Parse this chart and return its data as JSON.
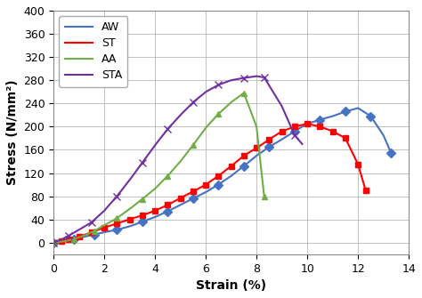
{
  "title": "",
  "xlabel": "Strain (%)",
  "ylabel": "Stress (N/mm²)",
  "xlim": [
    0,
    14
  ],
  "ylim": [
    -20,
    400
  ],
  "yticks": [
    0,
    40,
    80,
    120,
    160,
    200,
    240,
    280,
    320,
    360,
    400
  ],
  "xticks": [
    0,
    2,
    4,
    6,
    8,
    10,
    12,
    14
  ],
  "AW": {
    "color": "#4472C4",
    "marker": "D",
    "x": [
      0,
      0.4,
      0.8,
      1.2,
      1.6,
      2.0,
      2.5,
      3.0,
      3.5,
      4.0,
      4.5,
      5.0,
      5.5,
      6.0,
      6.5,
      7.0,
      7.5,
      8.0,
      8.5,
      9.0,
      9.5,
      10.0,
      10.5,
      11.0,
      11.5,
      12.0,
      12.5,
      13.0,
      13.3
    ],
    "y": [
      0,
      3,
      6,
      10,
      14,
      18,
      22,
      28,
      36,
      44,
      54,
      65,
      76,
      87,
      100,
      115,
      132,
      150,
      165,
      178,
      192,
      205,
      212,
      218,
      226,
      232,
      218,
      185,
      155
    ]
  },
  "ST": {
    "color": "#FF0000",
    "marker": "s",
    "x": [
      0,
      0.3,
      0.6,
      1.0,
      1.5,
      2.0,
      2.5,
      3.0,
      3.5,
      4.0,
      4.5,
      5.0,
      5.5,
      6.0,
      6.5,
      7.0,
      7.5,
      8.0,
      8.5,
      9.0,
      9.5,
      10.0,
      10.5,
      11.0,
      11.5,
      12.0,
      12.3
    ],
    "y": [
      0,
      2,
      5,
      10,
      18,
      26,
      33,
      40,
      47,
      55,
      65,
      77,
      88,
      100,
      115,
      132,
      150,
      163,
      178,
      192,
      200,
      205,
      200,
      192,
      180,
      135,
      90
    ]
  },
  "AA": {
    "color": "#70AD47",
    "marker": "^",
    "x": [
      0,
      0.4,
      0.8,
      1.2,
      1.6,
      2.0,
      2.5,
      3.0,
      3.5,
      4.0,
      4.5,
      5.0,
      5.5,
      6.0,
      6.5,
      7.0,
      7.5,
      8.0,
      8.3
    ],
    "y": [
      0,
      2,
      6,
      12,
      20,
      30,
      42,
      58,
      75,
      93,
      115,
      140,
      168,
      198,
      222,
      242,
      258,
      200,
      80
    ]
  },
  "STA": {
    "color": "#7030A0",
    "marker": "x",
    "x": [
      0,
      0.3,
      0.6,
      1.0,
      1.5,
      2.0,
      2.5,
      3.0,
      3.5,
      4.0,
      4.5,
      5.0,
      5.5,
      6.0,
      6.5,
      7.0,
      7.5,
      8.0,
      8.3,
      9.0,
      9.5,
      9.8
    ],
    "y": [
      0,
      5,
      12,
      22,
      35,
      55,
      80,
      108,
      138,
      168,
      196,
      220,
      242,
      260,
      272,
      280,
      284,
      287,
      285,
      235,
      185,
      170
    ]
  },
  "background_color": "#FFFFFF",
  "grid_color": "#AAAAAA",
  "marker_every": {
    "AW": 2,
    "ST": 1,
    "AA": 2,
    "STA": 2
  },
  "marker_size": {
    "AW": 5,
    "ST": 5,
    "AA": 5,
    "STA": 6
  }
}
